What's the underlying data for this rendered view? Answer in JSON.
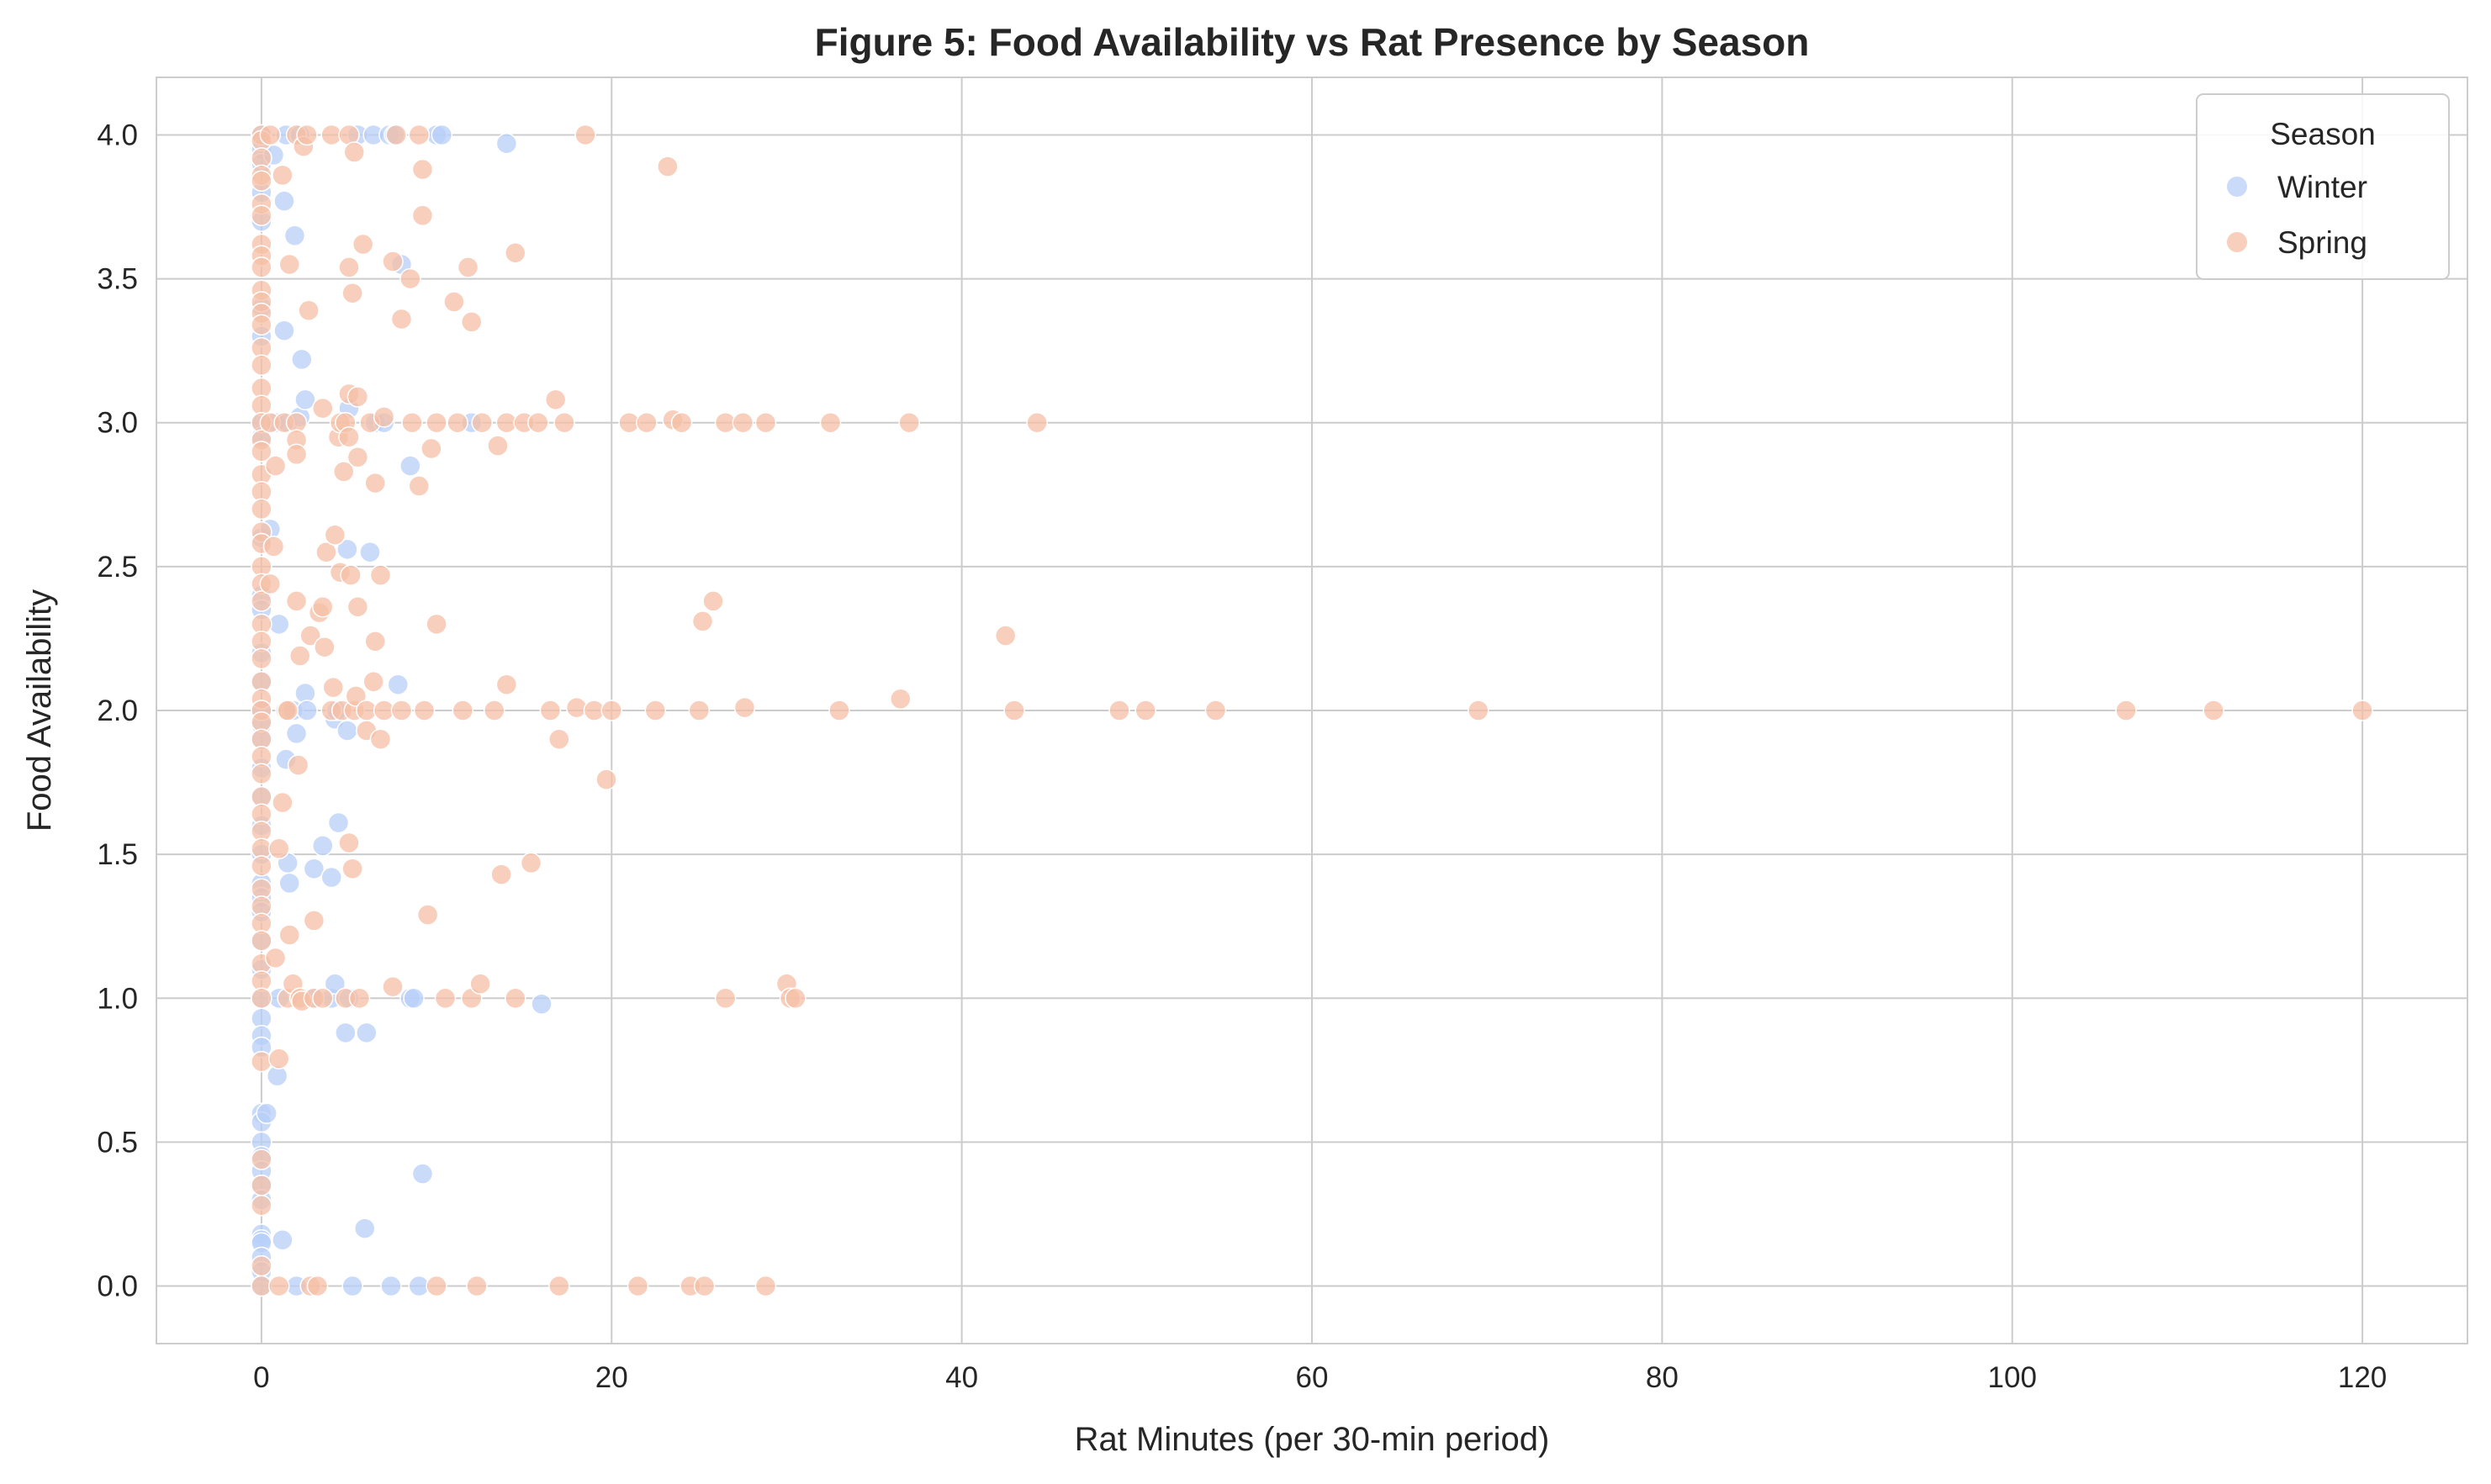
{
  "chart_data": {
    "type": "scatter",
    "title": "Figure 5: Food Availability vs Rat Presence by Season",
    "xlabel": "Rat Minutes (per 30-min period)",
    "ylabel": "Food Availability",
    "xlim": [
      -6,
      126
    ],
    "ylim": [
      -0.2,
      4.2
    ],
    "xticks": [
      "0",
      "20",
      "40",
      "60",
      "80",
      "100",
      "120"
    ],
    "yticks": [
      "0.0",
      "0.5",
      "1.0",
      "1.5",
      "2.0",
      "2.5",
      "3.0",
      "3.5",
      "4.0"
    ],
    "grid": true,
    "legend": {
      "title": "Season",
      "position": "top-right"
    },
    "series": [
      {
        "name": "Winter",
        "color": "#b8cff8",
        "points": [
          [
            0,
            4.0
          ],
          [
            0,
            3.95
          ],
          [
            0,
            3.9
          ],
          [
            0,
            3.8
          ],
          [
            0,
            3.7
          ],
          [
            0,
            3.4
          ],
          [
            0,
            3.3
          ],
          [
            0,
            3.0
          ],
          [
            0,
            2.95
          ],
          [
            0,
            2.6
          ],
          [
            0,
            2.4
          ],
          [
            0,
            2.35
          ],
          [
            0,
            2.2
          ],
          [
            0,
            2.1
          ],
          [
            0,
            2.0
          ],
          [
            0,
            1.95
          ],
          [
            0,
            1.9
          ],
          [
            0,
            1.8
          ],
          [
            0,
            1.7
          ],
          [
            0,
            1.6
          ],
          [
            0,
            1.5
          ],
          [
            0,
            1.4
          ],
          [
            0,
            1.35
          ],
          [
            0,
            1.3
          ],
          [
            0,
            1.2
          ],
          [
            0,
            1.1
          ],
          [
            0,
            1.0
          ],
          [
            0,
            0.93
          ],
          [
            0,
            0.87
          ],
          [
            0,
            0.83
          ],
          [
            0,
            0.6
          ],
          [
            0,
            0.57
          ],
          [
            0,
            0.5
          ],
          [
            0,
            0.45
          ],
          [
            0,
            0.4
          ],
          [
            0,
            0.35
          ],
          [
            0,
            0.3
          ],
          [
            0,
            0.18
          ],
          [
            0,
            0.16
          ],
          [
            0,
            0.15
          ],
          [
            0,
            0.1
          ],
          [
            0,
            0.05
          ],
          [
            0,
            0.0
          ],
          [
            0.3,
            0.6
          ],
          [
            0.5,
            2.63
          ],
          [
            0.7,
            3.93
          ],
          [
            0.8,
            3.0
          ],
          [
            0.9,
            0.73
          ],
          [
            1.0,
            2.3
          ],
          [
            1.0,
            1.0
          ],
          [
            1.2,
            0.16
          ],
          [
            1.3,
            3.77
          ],
          [
            1.3,
            3.32
          ],
          [
            1.4,
            4.0
          ],
          [
            1.4,
            1.83
          ],
          [
            1.5,
            1.47
          ],
          [
            1.5,
            3.0
          ],
          [
            1.6,
            1.4
          ],
          [
            1.8,
            2.0
          ],
          [
            1.9,
            3.65
          ],
          [
            2.0,
            1.92
          ],
          [
            2.0,
            0.0
          ],
          [
            2.2,
            4.0
          ],
          [
            2.2,
            3.02
          ],
          [
            2.3,
            3.22
          ],
          [
            2.5,
            2.06
          ],
          [
            2.5,
            3.08
          ],
          [
            2.6,
            2.0
          ],
          [
            3.0,
            1.45
          ],
          [
            3.0,
            1.0
          ],
          [
            3.5,
            1.53
          ],
          [
            4.0,
            1.42
          ],
          [
            4.0,
            1.0
          ],
          [
            4.2,
            1.97
          ],
          [
            4.2,
            1.05
          ],
          [
            4.3,
            2.0
          ],
          [
            4.4,
            1.61
          ],
          [
            4.8,
            0.88
          ],
          [
            4.9,
            2.56
          ],
          [
            4.9,
            1.93
          ],
          [
            5.0,
            3.05
          ],
          [
            5.0,
            1.0
          ],
          [
            5.2,
            0.0
          ],
          [
            5.5,
            4.0
          ],
          [
            5.9,
            0.2
          ],
          [
            6.0,
            0.88
          ],
          [
            6.2,
            2.55
          ],
          [
            6.4,
            4.0
          ],
          [
            6.5,
            3.0
          ],
          [
            7.0,
            3.0
          ],
          [
            7.3,
            4.0
          ],
          [
            7.4,
            0.0
          ],
          [
            7.6,
            4.0
          ],
          [
            7.8,
            2.09
          ],
          [
            8.0,
            3.55
          ],
          [
            8.5,
            2.85
          ],
          [
            8.5,
            1.0
          ],
          [
            8.7,
            1.0
          ],
          [
            9.0,
            0.0
          ],
          [
            9.2,
            0.39
          ],
          [
            10.0,
            4.0
          ],
          [
            10.3,
            4.0
          ],
          [
            12.0,
            3.0
          ],
          [
            14.0,
            3.97
          ],
          [
            16.0,
            0.98
          ]
        ]
      },
      {
        "name": "Spring",
        "color": "#f5bfa5",
        "points": [
          [
            0,
            4.0
          ],
          [
            0,
            3.98
          ],
          [
            0,
            3.92
          ],
          [
            0,
            3.86
          ],
          [
            0,
            3.84
          ],
          [
            0,
            3.76
          ],
          [
            0,
            3.72
          ],
          [
            0,
            3.62
          ],
          [
            0,
            3.58
          ],
          [
            0,
            3.54
          ],
          [
            0,
            3.46
          ],
          [
            0,
            3.42
          ],
          [
            0,
            3.38
          ],
          [
            0,
            3.34
          ],
          [
            0,
            3.26
          ],
          [
            0,
            3.2
          ],
          [
            0,
            3.12
          ],
          [
            0,
            3.06
          ],
          [
            0,
            3.0
          ],
          [
            0,
            2.94
          ],
          [
            0,
            2.9
          ],
          [
            0,
            2.82
          ],
          [
            0,
            2.76
          ],
          [
            0,
            2.7
          ],
          [
            0,
            2.62
          ],
          [
            0,
            2.58
          ],
          [
            0,
            2.5
          ],
          [
            0,
            2.44
          ],
          [
            0,
            2.38
          ],
          [
            0,
            2.3
          ],
          [
            0,
            2.24
          ],
          [
            0,
            2.18
          ],
          [
            0,
            2.1
          ],
          [
            0,
            2.04
          ],
          [
            0,
            2.0
          ],
          [
            0,
            1.96
          ],
          [
            0,
            1.9
          ],
          [
            0,
            1.84
          ],
          [
            0,
            1.78
          ],
          [
            0,
            1.7
          ],
          [
            0,
            1.64
          ],
          [
            0,
            1.58
          ],
          [
            0,
            1.52
          ],
          [
            0,
            1.46
          ],
          [
            0,
            1.38
          ],
          [
            0,
            1.32
          ],
          [
            0,
            1.26
          ],
          [
            0,
            1.2
          ],
          [
            0,
            1.12
          ],
          [
            0,
            1.06
          ],
          [
            0,
            1.0
          ],
          [
            0,
            0.78
          ],
          [
            0,
            0.44
          ],
          [
            0,
            0.35
          ],
          [
            0,
            0.28
          ],
          [
            0,
            0.07
          ],
          [
            0,
            0.0
          ],
          [
            0.5,
            4.0
          ],
          [
            0.5,
            3.0
          ],
          [
            0.5,
            2.44
          ],
          [
            0.7,
            2.57
          ],
          [
            0.8,
            2.85
          ],
          [
            0.8,
            1.14
          ],
          [
            1.0,
            1.52
          ],
          [
            1.0,
            0.79
          ],
          [
            1.0,
            0.0
          ],
          [
            1.2,
            3.86
          ],
          [
            1.2,
            1.68
          ],
          [
            1.3,
            3.0
          ],
          [
            1.4,
            2.0
          ],
          [
            1.5,
            2.0
          ],
          [
            1.5,
            1.0
          ],
          [
            1.6,
            1.22
          ],
          [
            1.6,
            3.55
          ],
          [
            1.8,
            1.05
          ],
          [
            2.0,
            4.0
          ],
          [
            2.0,
            3.0
          ],
          [
            2.0,
            2.94
          ],
          [
            2.0,
            2.89
          ],
          [
            2.0,
            2.38
          ],
          [
            2.1,
            1.81
          ],
          [
            2.2,
            2.19
          ],
          [
            2.2,
            1.0
          ],
          [
            2.3,
            0.99
          ],
          [
            2.4,
            3.96
          ],
          [
            2.6,
            4.0
          ],
          [
            2.7,
            3.39
          ],
          [
            2.8,
            2.26
          ],
          [
            2.8,
            0.0
          ],
          [
            3.0,
            1.27
          ],
          [
            3.0,
            1.0
          ],
          [
            3.2,
            0.0
          ],
          [
            3.3,
            2.34
          ],
          [
            3.5,
            2.36
          ],
          [
            3.5,
            3.05
          ],
          [
            3.5,
            1.0
          ],
          [
            3.6,
            2.22
          ],
          [
            3.7,
            2.55
          ],
          [
            4.0,
            4.0
          ],
          [
            4.0,
            2.0
          ],
          [
            4.1,
            2.08
          ],
          [
            4.2,
            2.61
          ],
          [
            4.4,
            2.95
          ],
          [
            4.5,
            2.48
          ],
          [
            4.5,
            3.0
          ],
          [
            4.6,
            2.0
          ],
          [
            4.7,
            2.83
          ],
          [
            4.8,
            3.0
          ],
          [
            4.8,
            1.0
          ],
          [
            5.0,
            4.0
          ],
          [
            5.0,
            3.54
          ],
          [
            5.0,
            3.1
          ],
          [
            5.0,
            2.95
          ],
          [
            5.0,
            1.54
          ],
          [
            5.1,
            2.47
          ],
          [
            5.2,
            3.45
          ],
          [
            5.2,
            1.45
          ],
          [
            5.3,
            3.94
          ],
          [
            5.3,
            2.0
          ],
          [
            5.4,
            2.05
          ],
          [
            5.5,
            3.09
          ],
          [
            5.5,
            2.88
          ],
          [
            5.5,
            2.36
          ],
          [
            5.6,
            1.0
          ],
          [
            5.8,
            3.62
          ],
          [
            6.0,
            2.0
          ],
          [
            6.0,
            1.93
          ],
          [
            6.2,
            3.0
          ],
          [
            6.4,
            2.1
          ],
          [
            6.5,
            2.24
          ],
          [
            6.5,
            2.79
          ],
          [
            6.8,
            2.47
          ],
          [
            6.8,
            1.9
          ],
          [
            7.0,
            3.02
          ],
          [
            7.0,
            2.0
          ],
          [
            7.5,
            3.56
          ],
          [
            7.5,
            1.04
          ],
          [
            7.7,
            4.0
          ],
          [
            8.0,
            3.36
          ],
          [
            8.0,
            2.0
          ],
          [
            8.5,
            3.5
          ],
          [
            8.6,
            3.0
          ],
          [
            9.0,
            4.0
          ],
          [
            9.0,
            2.78
          ],
          [
            9.2,
            3.88
          ],
          [
            9.2,
            3.72
          ],
          [
            9.3,
            2.0
          ],
          [
            9.5,
            1.29
          ],
          [
            9.7,
            2.91
          ],
          [
            10.0,
            2.3
          ],
          [
            10.0,
            3.0
          ],
          [
            10.0,
            0.0
          ],
          [
            10.5,
            1.0
          ],
          [
            11.0,
            3.42
          ],
          [
            11.2,
            3.0
          ],
          [
            11.5,
            2.0
          ],
          [
            11.8,
            3.54
          ],
          [
            12.0,
            3.35
          ],
          [
            12.0,
            1.0
          ],
          [
            12.3,
            0.0
          ],
          [
            12.5,
            1.05
          ],
          [
            12.6,
            3.0
          ],
          [
            13.3,
            2.0
          ],
          [
            13.5,
            2.92
          ],
          [
            13.7,
            1.43
          ],
          [
            14.0,
            3.0
          ],
          [
            14.0,
            2.09
          ],
          [
            14.5,
            3.59
          ],
          [
            14.5,
            1.0
          ],
          [
            15.0,
            3.0
          ],
          [
            15.4,
            1.47
          ],
          [
            15.8,
            3.0
          ],
          [
            16.5,
            2.0
          ],
          [
            16.8,
            3.08
          ],
          [
            17.0,
            1.9
          ],
          [
            17.0,
            0.0
          ],
          [
            17.3,
            3.0
          ],
          [
            18.0,
            2.01
          ],
          [
            18.5,
            4.0
          ],
          [
            19.0,
            2.0
          ],
          [
            19.7,
            1.76
          ],
          [
            20.0,
            2.0
          ],
          [
            21.0,
            3.0
          ],
          [
            21.5,
            0.0
          ],
          [
            22.0,
            3.0
          ],
          [
            22.5,
            2.0
          ],
          [
            23.2,
            3.89
          ],
          [
            23.5,
            3.01
          ],
          [
            24.0,
            3.0
          ],
          [
            24.5,
            0.0
          ],
          [
            25.0,
            2.0
          ],
          [
            25.2,
            2.31
          ],
          [
            25.3,
            0.0
          ],
          [
            25.8,
            2.38
          ],
          [
            26.5,
            3.0
          ],
          [
            26.5,
            1.0
          ],
          [
            27.5,
            3.0
          ],
          [
            27.6,
            2.01
          ],
          [
            28.8,
            3.0
          ],
          [
            28.8,
            0.0
          ],
          [
            30.0,
            1.05
          ],
          [
            30.2,
            1.0
          ],
          [
            30.5,
            1.0
          ],
          [
            32.5,
            3.0
          ],
          [
            33.0,
            2.0
          ],
          [
            36.5,
            2.04
          ],
          [
            37.0,
            3.0
          ],
          [
            42.5,
            2.26
          ],
          [
            43.0,
            2.0
          ],
          [
            44.3,
            3.0
          ],
          [
            49.0,
            2.0
          ],
          [
            50.5,
            2.0
          ],
          [
            54.5,
            2.0
          ],
          [
            69.5,
            2.0
          ],
          [
            106.5,
            2.0
          ],
          [
            111.5,
            2.0
          ],
          [
            120.0,
            2.0
          ]
        ]
      }
    ]
  }
}
